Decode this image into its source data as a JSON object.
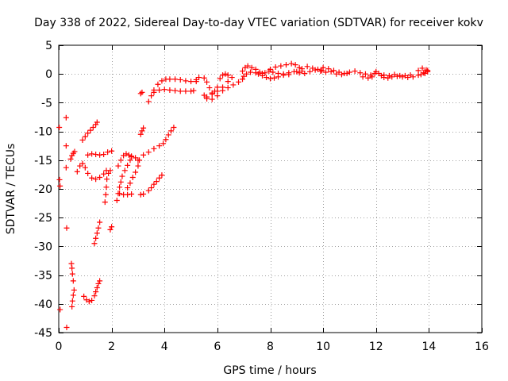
{
  "chart_data": {
    "type": "scatter",
    "title": "Day 338 of 2022, Sidereal Day-to-day VTEC variation (SDTVAR) for receiver kokv",
    "xlabel": "GPS time / hours",
    "ylabel": "SDTVAR / TECUs",
    "xlim": [
      0,
      16
    ],
    "ylim": [
      -45,
      5
    ],
    "xticks": [
      0,
      2,
      4,
      6,
      8,
      10,
      12,
      14,
      16
    ],
    "xtick_labels": [
      "0",
      "2",
      "4",
      "6",
      "8",
      "10",
      "12",
      "14",
      "16"
    ],
    "yticks": [
      5,
      0,
      -5,
      -10,
      -15,
      -20,
      -25,
      -30,
      -35,
      -40,
      -45
    ],
    "ytick_labels": [
      "5",
      "0",
      "-5",
      "-10",
      "-15",
      "-20",
      "-25",
      "-30",
      "-35",
      "-40",
      "-45"
    ],
    "grid": true,
    "marker": "+",
    "color": "#ff0000",
    "series": [
      {
        "points": [
          [
            0.02,
            -9.3
          ],
          [
            0.03,
            -18.4
          ],
          [
            0.05,
            -19.5
          ],
          [
            0.05,
            -41.0
          ]
        ]
      },
      {
        "points": [
          [
            0.28,
            -7.6
          ],
          [
            0.28,
            -12.5
          ],
          [
            0.28,
            -16.3
          ],
          [
            0.3,
            -26.8
          ],
          [
            0.3,
            -44.1
          ]
        ]
      },
      {
        "points": [
          [
            0.48,
            -33.0
          ],
          [
            0.5,
            -33.8
          ],
          [
            0.52,
            -34.8
          ],
          [
            0.55,
            -36.0
          ],
          [
            0.58,
            -37.6
          ],
          [
            0.55,
            -38.5
          ],
          [
            0.52,
            -39.5
          ],
          [
            0.5,
            -40.5
          ]
        ]
      },
      {
        "points": [
          [
            0.45,
            -14.8
          ],
          [
            0.5,
            -14.2
          ],
          [
            0.55,
            -13.8
          ],
          [
            0.6,
            -13.5
          ]
        ]
      },
      {
        "points": [
          [
            0.7,
            -17.0
          ],
          [
            0.8,
            -16.0
          ],
          [
            0.9,
            -15.6
          ],
          [
            1.0,
            -16.3
          ],
          [
            1.1,
            -17.3
          ],
          [
            1.25,
            -18.1
          ],
          [
            1.4,
            -18.3
          ],
          [
            1.55,
            -18.0
          ],
          [
            1.7,
            -17.4
          ],
          [
            1.8,
            -16.8
          ]
        ]
      },
      {
        "points": [
          [
            0.9,
            -11.5
          ],
          [
            1.0,
            -10.9
          ],
          [
            1.1,
            -10.3
          ],
          [
            1.2,
            -9.8
          ],
          [
            1.3,
            -9.3
          ],
          [
            1.4,
            -8.8
          ],
          [
            1.45,
            -8.4
          ]
        ]
      },
      {
        "points": [
          [
            1.1,
            -14.1
          ],
          [
            1.25,
            -13.9
          ],
          [
            1.4,
            -14.0
          ],
          [
            1.55,
            -14.1
          ],
          [
            1.7,
            -14.0
          ],
          [
            1.85,
            -13.6
          ],
          [
            2.0,
            -13.4
          ]
        ]
      },
      {
        "points": [
          [
            0.95,
            -38.7
          ],
          [
            1.05,
            -39.3
          ],
          [
            1.15,
            -39.6
          ],
          [
            1.25,
            -39.4
          ],
          [
            1.35,
            -38.6
          ],
          [
            1.4,
            -37.9
          ],
          [
            1.45,
            -37.2
          ],
          [
            1.5,
            -36.5
          ],
          [
            1.55,
            -36.0
          ]
        ]
      },
      {
        "points": [
          [
            1.35,
            -29.5
          ],
          [
            1.4,
            -28.6
          ],
          [
            1.45,
            -27.7
          ],
          [
            1.5,
            -26.8
          ],
          [
            1.55,
            -25.8
          ]
        ]
      },
      {
        "points": [
          [
            1.75,
            -22.3
          ],
          [
            1.78,
            -21.0
          ],
          [
            1.8,
            -19.7
          ],
          [
            1.82,
            -18.3
          ],
          [
            1.88,
            -17.3
          ],
          [
            1.95,
            -16.8
          ]
        ]
      },
      {
        "points": [
          [
            1.95,
            -27.1
          ],
          [
            2.0,
            -26.6
          ]
        ]
      },
      {
        "points": [
          [
            2.2,
            -22.0
          ],
          [
            2.25,
            -20.8
          ],
          [
            2.3,
            -19.7
          ],
          [
            2.35,
            -18.8
          ],
          [
            2.4,
            -17.8
          ],
          [
            2.5,
            -16.8
          ],
          [
            2.6,
            -15.9
          ],
          [
            2.7,
            -15.0
          ],
          [
            2.75,
            -14.3
          ]
        ]
      },
      {
        "points": [
          [
            2.25,
            -16.0
          ],
          [
            2.35,
            -15.0
          ],
          [
            2.45,
            -14.2
          ],
          [
            2.55,
            -13.9
          ],
          [
            2.65,
            -14.1
          ],
          [
            2.75,
            -14.4
          ],
          [
            2.9,
            -14.6
          ],
          [
            3.0,
            -15.0
          ]
        ]
      },
      {
        "points": [
          [
            2.3,
            -20.8
          ],
          [
            2.45,
            -21.0
          ],
          [
            2.6,
            -21.0
          ],
          [
            2.75,
            -20.9
          ]
        ]
      },
      {
        "points": [
          [
            2.6,
            -19.8
          ],
          [
            2.7,
            -19.0
          ],
          [
            2.8,
            -18.0
          ],
          [
            2.9,
            -17.1
          ],
          [
            3.0,
            -16.0
          ],
          [
            3.05,
            -15.0
          ]
        ]
      },
      {
        "points": [
          [
            3.1,
            -10.5
          ],
          [
            3.15,
            -9.9
          ],
          [
            3.2,
            -9.4
          ]
        ]
      },
      {
        "points": [
          [
            3.1,
            -21.0
          ],
          [
            3.2,
            -20.9
          ]
        ]
      },
      {
        "points": [
          [
            3.1,
            -3.4
          ],
          [
            3.15,
            -3.2
          ]
        ]
      },
      {
        "points": [
          [
            3.2,
            -14.1
          ],
          [
            3.4,
            -13.6
          ],
          [
            3.6,
            -13.0
          ],
          [
            3.8,
            -12.5
          ],
          [
            3.95,
            -12.1
          ],
          [
            4.05,
            -11.4
          ],
          [
            4.15,
            -10.6
          ],
          [
            4.25,
            -9.9
          ],
          [
            4.35,
            -9.3
          ]
        ]
      },
      {
        "points": [
          [
            3.4,
            -20.3
          ],
          [
            3.5,
            -19.8
          ],
          [
            3.6,
            -19.2
          ],
          [
            3.7,
            -18.7
          ],
          [
            3.8,
            -18.1
          ],
          [
            3.9,
            -17.6
          ]
        ]
      },
      {
        "points": [
          [
            3.4,
            -4.8
          ],
          [
            3.5,
            -3.8
          ],
          [
            3.6,
            -2.8
          ],
          [
            3.75,
            -1.8
          ],
          [
            3.9,
            -1.2
          ],
          [
            4.05,
            -0.9
          ],
          [
            4.2,
            -0.9
          ],
          [
            4.4,
            -0.9
          ],
          [
            4.6,
            -1.0
          ],
          [
            4.8,
            -1.2
          ],
          [
            5.0,
            -1.3
          ],
          [
            5.2,
            -1.3
          ]
        ]
      },
      {
        "points": [
          [
            3.6,
            -3.2
          ],
          [
            3.8,
            -2.8
          ],
          [
            4.0,
            -2.7
          ],
          [
            4.2,
            -2.8
          ],
          [
            4.4,
            -2.9
          ],
          [
            4.6,
            -3.0
          ],
          [
            4.8,
            -3.0
          ],
          [
            5.0,
            -3.0
          ],
          [
            5.1,
            -2.9
          ]
        ]
      },
      {
        "points": [
          [
            5.2,
            -1.0
          ],
          [
            5.3,
            -0.6
          ],
          [
            5.5,
            -0.7
          ],
          [
            5.6,
            -1.4
          ],
          [
            5.7,
            -2.4
          ],
          [
            5.8,
            -3.3
          ],
          [
            5.9,
            -3.0
          ],
          [
            6.0,
            -2.3
          ]
        ]
      },
      {
        "points": [
          [
            5.5,
            -3.7
          ],
          [
            5.6,
            -4.0
          ],
          [
            5.8,
            -4.4
          ],
          [
            6.0,
            -3.8
          ],
          [
            6.2,
            -2.9
          ],
          [
            6.4,
            -2.4
          ],
          [
            6.6,
            -1.9
          ],
          [
            6.8,
            -1.4
          ],
          [
            6.95,
            -0.9
          ]
        ]
      },
      {
        "points": [
          [
            5.6,
            -4.3
          ],
          [
            5.8,
            -3.5
          ],
          [
            6.0,
            -3.0
          ],
          [
            6.2,
            -2.3
          ],
          [
            6.4,
            -1.3
          ],
          [
            6.55,
            -0.6
          ]
        ]
      },
      {
        "points": [
          [
            6.1,
            -0.8
          ],
          [
            6.2,
            -0.2
          ],
          [
            6.3,
            0.0
          ],
          [
            6.4,
            -0.2
          ]
        ]
      },
      {
        "points": [
          [
            6.95,
            0.5
          ],
          [
            7.05,
            1.1
          ],
          [
            7.15,
            1.4
          ],
          [
            7.3,
            1.1
          ],
          [
            7.45,
            0.8
          ],
          [
            7.6,
            0.3
          ],
          [
            7.7,
            0.1
          ]
        ]
      },
      {
        "points": [
          [
            7.0,
            -0.4
          ],
          [
            7.1,
            0.0
          ],
          [
            7.25,
            0.3
          ],
          [
            7.45,
            0.2
          ],
          [
            7.55,
            0.0
          ]
        ]
      },
      {
        "points": [
          [
            7.7,
            -0.3
          ],
          [
            7.85,
            -0.6
          ],
          [
            8.0,
            -0.8
          ],
          [
            8.15,
            -0.7
          ],
          [
            8.3,
            -0.5
          ],
          [
            8.5,
            -0.2
          ],
          [
            8.7,
            -0.1
          ]
        ]
      },
      {
        "points": [
          [
            7.8,
            0.2
          ],
          [
            7.95,
            0.5
          ],
          [
            8.1,
            0.3
          ],
          [
            8.3,
            0.1
          ],
          [
            8.5,
            0.0
          ],
          [
            8.7,
            0.2
          ],
          [
            8.9,
            0.4
          ]
        ]
      },
      {
        "points": [
          [
            8.0,
            0.8
          ],
          [
            8.2,
            1.2
          ],
          [
            8.4,
            1.4
          ],
          [
            8.6,
            1.6
          ],
          [
            8.8,
            1.8
          ],
          [
            8.95,
            1.6
          ],
          [
            9.1,
            1.1
          ],
          [
            9.2,
            0.5
          ]
        ]
      },
      {
        "points": [
          [
            9.0,
            0.4
          ],
          [
            9.2,
            0.9
          ],
          [
            9.4,
            1.3
          ],
          [
            9.6,
            1.0
          ],
          [
            9.8,
            0.8
          ],
          [
            9.95,
            0.6
          ]
        ]
      },
      {
        "points": [
          [
            9.1,
            0.2
          ],
          [
            9.3,
            0.1
          ],
          [
            9.5,
            0.4
          ],
          [
            9.7,
            0.7
          ],
          [
            9.9,
            0.5
          ]
        ]
      },
      {
        "points": [
          [
            10.0,
            1.1
          ],
          [
            10.2,
            0.9
          ],
          [
            10.4,
            0.6
          ],
          [
            10.6,
            0.3
          ],
          [
            10.8,
            0.1
          ],
          [
            11.0,
            0.3
          ],
          [
            11.2,
            0.5
          ],
          [
            11.4,
            0.2
          ],
          [
            11.6,
            0.0
          ],
          [
            11.8,
            -0.2
          ],
          [
            11.95,
            0.1
          ]
        ]
      },
      {
        "points": [
          [
            10.1,
            0.3
          ],
          [
            10.3,
            0.4
          ],
          [
            10.5,
            0.0
          ],
          [
            10.7,
            -0.1
          ],
          [
            10.9,
            0.1
          ]
        ]
      },
      {
        "points": [
          [
            11.5,
            -0.5
          ],
          [
            11.7,
            -0.7
          ],
          [
            11.85,
            -0.5
          ]
        ]
      },
      {
        "points": [
          [
            12.0,
            0.4
          ],
          [
            12.1,
            0.1
          ],
          [
            12.2,
            -0.3
          ],
          [
            12.3,
            -0.6
          ],
          [
            12.45,
            -0.7
          ],
          [
            12.6,
            -0.5
          ],
          [
            12.8,
            -0.4
          ],
          [
            13.0,
            -0.5
          ],
          [
            13.2,
            -0.6
          ],
          [
            13.4,
            -0.5
          ],
          [
            13.6,
            -0.2
          ],
          [
            13.8,
            0.2
          ],
          [
            13.95,
            0.6
          ]
        ]
      },
      {
        "points": [
          [
            12.3,
            -0.2
          ],
          [
            12.5,
            -0.3
          ],
          [
            12.7,
            -0.1
          ],
          [
            12.9,
            -0.3
          ],
          [
            13.1,
            -0.3
          ],
          [
            13.3,
            -0.2
          ]
        ]
      },
      {
        "points": [
          [
            13.6,
            0.6
          ],
          [
            13.75,
            1.0
          ],
          [
            13.9,
            0.7
          ],
          [
            13.95,
            0.4
          ],
          [
            13.85,
            0.1
          ],
          [
            13.7,
            -0.1
          ]
        ]
      }
    ]
  }
}
